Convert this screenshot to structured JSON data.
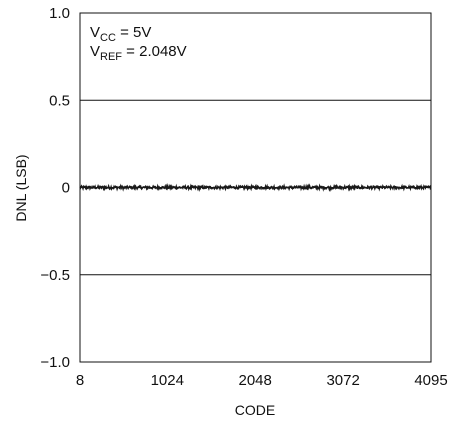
{
  "chart_data": {
    "type": "line",
    "title": "",
    "xlabel": "CODE",
    "ylabel": "DNL (LSB)",
    "xlim": [
      8,
      4095
    ],
    "ylim": [
      -1.0,
      1.0
    ],
    "x_ticks": [
      8,
      1024,
      2048,
      3072,
      4095
    ],
    "x_tick_labels": [
      "8",
      "1024",
      "2048",
      "3072",
      "4095"
    ],
    "y_ticks": [
      1.0,
      0.5,
      0,
      -0.5,
      -1.0
    ],
    "y_tick_labels": [
      "1.0",
      "0.5",
      "0",
      "−0.5",
      "−1.0"
    ],
    "grid": "horizontal",
    "annotations": [
      {
        "main": "V",
        "sub": "CC",
        "rest": " = 5V"
      },
      {
        "main": "V",
        "sub": "REF",
        "rest": " = 2.048V"
      }
    ],
    "series": [
      {
        "x_range": [
          8,
          4095
        ],
        "center": 0,
        "noise_band": 0.008,
        "color": "#1a1a1a"
      }
    ]
  }
}
